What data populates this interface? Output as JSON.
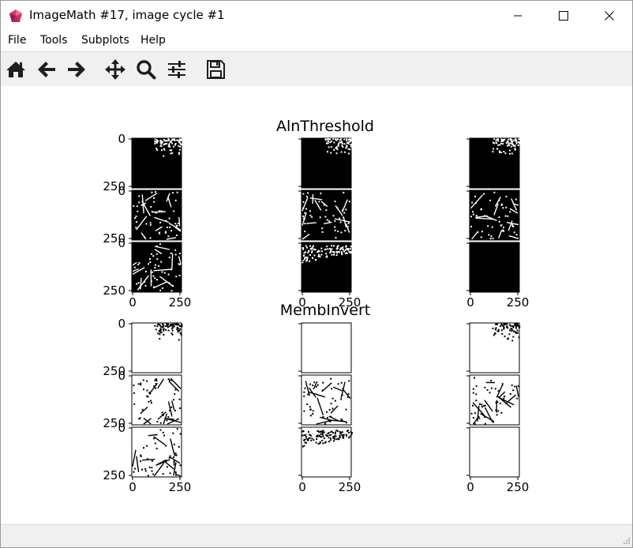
{
  "window": {
    "title": "ImageMath #17, image cycle #1"
  },
  "menu": [
    "File",
    "Tools",
    "Subplots",
    "Help"
  ],
  "toolbar": {
    "buttons": [
      "home-icon",
      "back-arrow-icon",
      "forward-arrow-icon",
      "pan-icon",
      "zoom-icon",
      "configure-subplots-icon",
      "save-icon"
    ]
  },
  "figure": {
    "groups": [
      {
        "title": "AlnThreshold",
        "background": "black",
        "speckle": "white"
      },
      {
        "title": "MembInvert",
        "background": "white",
        "speckle": "black"
      }
    ],
    "ytick_labels": [
      "0",
      "250"
    ],
    "xtick_labels": [
      "0",
      "250"
    ]
  },
  "colors": {
    "toolbar": "#f0f0f0",
    "statusbar": "#f0f0f0",
    "icon": "#1e1e1e"
  }
}
